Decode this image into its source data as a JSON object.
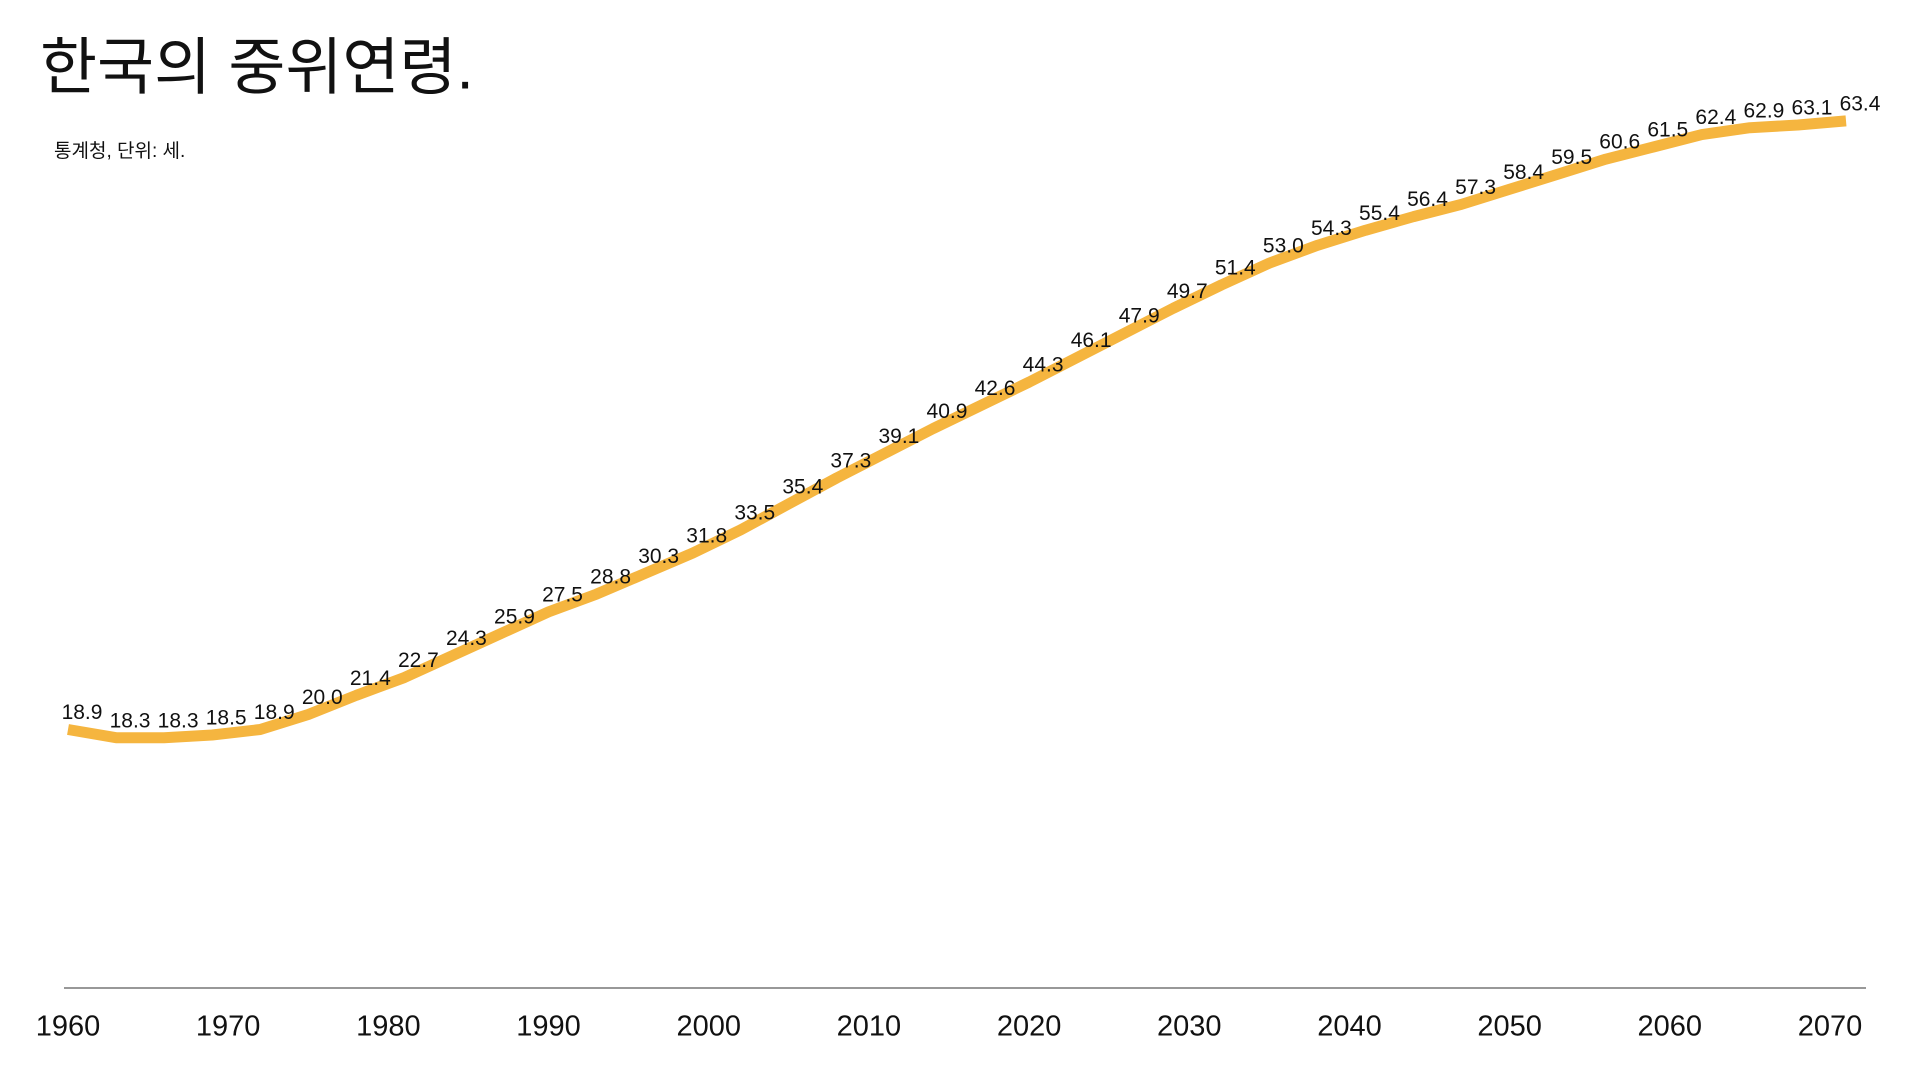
{
  "chart_data": {
    "type": "line",
    "title": "한국의 중위연령.",
    "subtitle": "통계청, 단위: 세.",
    "x": [
      1960,
      1963,
      1966,
      1969,
      1972,
      1975,
      1978,
      1981,
      1984,
      1987,
      1990,
      1993,
      1996,
      1999,
      2002,
      2005,
      2008,
      2011,
      2014,
      2017,
      2020,
      2023,
      2026,
      2029,
      2032,
      2035,
      2038,
      2041,
      2044,
      2047,
      2050,
      2053,
      2056,
      2059,
      2062,
      2065,
      2068,
      2071
    ],
    "series": [
      {
        "name": "중위연령",
        "color": "#f5b53f",
        "values": [
          18.9,
          18.3,
          18.3,
          18.5,
          18.9,
          20.0,
          21.4,
          22.7,
          24.3,
          25.9,
          27.5,
          28.8,
          30.3,
          31.8,
          33.5,
          35.4,
          37.3,
          39.1,
          40.9,
          42.6,
          44.3,
          46.1,
          47.9,
          49.7,
          51.4,
          53.0,
          54.3,
          55.4,
          56.4,
          57.3,
          58.4,
          59.5,
          60.6,
          61.5,
          62.4,
          62.9,
          63.1,
          63.4
        ],
        "value_labels": [
          "18.9",
          "18.3",
          "18.3",
          "18.5",
          "18.9",
          "20.0",
          "21.4",
          "22.7",
          "24.3",
          "25.9",
          "27.5",
          "28.8",
          "30.3",
          "31.8",
          "33.5",
          "35.4",
          "37.3",
          "39.1",
          "40.9",
          "42.6",
          "44.3",
          "46.1",
          "47.9",
          "49.7",
          "51.4",
          "53.0",
          "54.3",
          "55.4",
          "56.4",
          "57.3",
          "58.4",
          "59.5",
          "60.6",
          "61.5",
          "62.4",
          "62.9",
          "63.1",
          "63.4"
        ]
      }
    ],
    "xlim": [
      1960,
      2072
    ],
    "xticks": [
      1960,
      1970,
      1980,
      1990,
      2000,
      2010,
      2020,
      2030,
      2040,
      2050,
      2060,
      2070
    ],
    "ylim": [
      0,
      65
    ],
    "grid": false
  }
}
